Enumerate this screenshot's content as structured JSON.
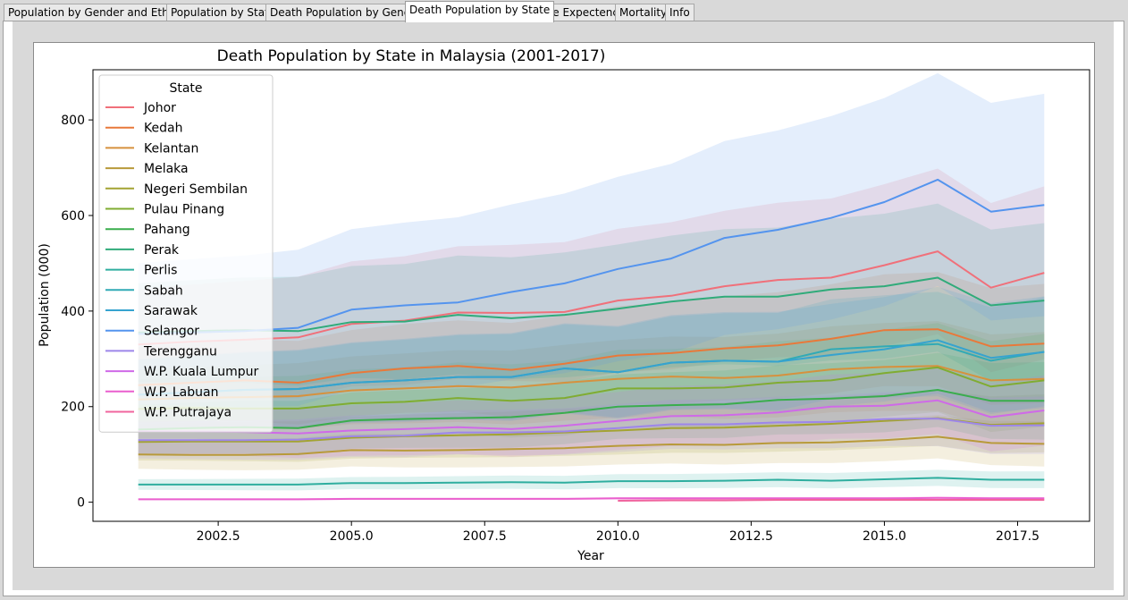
{
  "tabs": [
    {
      "label": "Population by Gender and Ethnic",
      "active": false
    },
    {
      "label": "Population by State",
      "active": false
    },
    {
      "label": "Death Population by Gender",
      "active": false
    },
    {
      "label": "Death Population by State",
      "active": true
    },
    {
      "label": "Life Expectency",
      "active": false
    },
    {
      "label": "Mortality",
      "active": false
    },
    {
      "label": "Info",
      "active": false
    }
  ],
  "chart_data": {
    "type": "line",
    "title": "Death Population by State in Malaysia (2001-2017)",
    "xlabel": "Year",
    "ylabel": "Population (000)",
    "xlim": [
      2000.15,
      2018.85
    ],
    "ylim": [
      -40,
      905
    ],
    "xticks": [
      "2002.5",
      "2005.0",
      "2007.5",
      "2010.0",
      "2012.5",
      "2015.0",
      "2017.5"
    ],
    "xtick_values": [
      2002.5,
      2005.0,
      2007.5,
      2010.0,
      2012.5,
      2015.0,
      2017.5
    ],
    "yticks": [
      "0",
      "200",
      "400",
      "600",
      "800"
    ],
    "ytick_values": [
      0,
      200,
      400,
      600,
      800
    ],
    "grid": false,
    "legend": {
      "title": "State",
      "position": "top-left"
    },
    "x": [
      2001,
      2002,
      2003,
      2004,
      2005,
      2006,
      2007,
      2008,
      2009,
      2010,
      2011,
      2012,
      2013,
      2014,
      2015,
      2016,
      2017,
      2018
    ],
    "series": [
      {
        "name": "Johor",
        "color": "#f0707a",
        "values": [
          330,
          336,
          340,
          345,
          373,
          380,
          397,
          396,
          398,
          422,
          432,
          452,
          465,
          470,
          496,
          525,
          449,
          480
        ]
      },
      {
        "name": "Kedah",
        "color": "#e8793a",
        "values": [
          245,
          250,
          255,
          250,
          270,
          280,
          285,
          277,
          290,
          307,
          312,
          322,
          328,
          342,
          360,
          362,
          326,
          332
        ]
      },
      {
        "name": "Kelantan",
        "color": "#d6913e",
        "values": [
          215,
          218,
          220,
          222,
          234,
          238,
          243,
          240,
          250,
          258,
          263,
          260,
          265,
          278,
          283,
          285,
          255,
          258
        ]
      },
      {
        "name": "Melaka",
        "color": "#b89a3a",
        "values": [
          100,
          99,
          99,
          101,
          109,
          108,
          109,
          111,
          113,
          118,
          121,
          120,
          124,
          125,
          130,
          137,
          124,
          122
        ]
      },
      {
        "name": "Negeri Sembilan",
        "color": "#a3a332",
        "values": [
          126,
          127,
          127,
          127,
          135,
          138,
          140,
          142,
          146,
          150,
          155,
          156,
          160,
          164,
          170,
          176,
          162,
          165
        ]
      },
      {
        "name": "Pulau Pinang",
        "color": "#80ac32",
        "values": [
          195,
          197,
          196,
          196,
          207,
          210,
          218,
          212,
          218,
          238,
          238,
          240,
          250,
          255,
          270,
          282,
          242,
          255
        ]
      },
      {
        "name": "Pahang",
        "color": "#3aad4d",
        "values": [
          152,
          155,
          157,
          155,
          171,
          174,
          176,
          178,
          187,
          200,
          203,
          205,
          214,
          217,
          222,
          235,
          212,
          212
        ]
      },
      {
        "name": "Perak",
        "color": "#30ab7a",
        "values": [
          355,
          358,
          360,
          358,
          377,
          378,
          392,
          385,
          392,
          405,
          420,
          430,
          430,
          445,
          452,
          470,
          412,
          422
        ]
      },
      {
        "name": "Perlis",
        "color": "#2fae9f",
        "values": [
          37,
          37,
          37,
          37,
          40,
          40,
          41,
          42,
          41,
          44,
          44,
          45,
          47,
          45,
          48,
          51,
          47,
          47
        ]
      },
      {
        "name": "Sabah",
        "color": "#31aab6",
        "values": [
          225,
          230,
          235,
          237,
          250,
          255,
          262,
          262,
          280,
          272,
          292,
          296,
          294,
          320,
          326,
          331,
          296,
          315
        ]
      },
      {
        "name": "Sarawak",
        "color": "#36a3cf",
        "values": [
          225,
          230,
          235,
          237,
          250,
          255,
          262,
          262,
          280,
          272,
          292,
          296,
          294,
          308,
          320,
          339,
          302,
          314
        ]
      },
      {
        "name": "Selangor",
        "color": "#5494ee",
        "values": [
          352,
          355,
          358,
          365,
          403,
          412,
          418,
          440,
          458,
          488,
          510,
          553,
          570,
          595,
          628,
          675,
          608,
          622
        ]
      },
      {
        "name": "Terengganu",
        "color": "#9d86ea",
        "values": [
          130,
          130,
          130,
          131,
          138,
          139,
          146,
          146,
          148,
          155,
          163,
          163,
          167,
          168,
          174,
          175,
          160,
          161
        ]
      },
      {
        "name": "W.P. Kuala Lumpur",
        "color": "#cf6ae8",
        "values": [
          148,
          148,
          147,
          144,
          150,
          153,
          157,
          153,
          160,
          170,
          180,
          182,
          188,
          200,
          202,
          213,
          178,
          192
        ]
      },
      {
        "name": "W.P. Labuan",
        "color": "#ea5fce",
        "values": [
          6,
          6,
          6,
          6,
          7,
          7,
          7,
          7,
          7,
          8,
          8,
          8,
          8,
          8,
          8,
          9,
          8,
          8
        ]
      },
      {
        "name": "W.P. Putrajaya",
        "color": "#f0659e",
        "values": [
          null,
          null,
          null,
          null,
          null,
          null,
          null,
          null,
          null,
          3,
          4,
          4,
          5,
          5,
          5,
          5,
          5,
          5
        ]
      }
    ]
  }
}
